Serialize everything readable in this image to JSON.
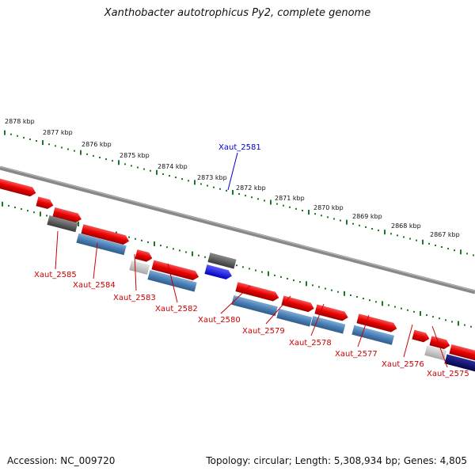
{
  "title": "Xanthobacter autotrophicus Py2, complete genome",
  "footer": {
    "accession": "Accession: NC_009720",
    "stats": "Topology: circular; Length: 5,308,934 bp; Genes: 4,805"
  },
  "colors": {
    "forward_gene": "#e60000",
    "reverse_gene": "#4a7fb5",
    "selected_gene": "#1010e0",
    "dark_gene": "#555555",
    "light_gene": "#c8c8c8",
    "navy_gene": "#0a0a6e",
    "ruler": "#1a7a1a",
    "backbone": "#888888",
    "label_red": "#cc0000",
    "label_blue": "#0000cc"
  },
  "ruler_labels": [
    "2878 kbp",
    "2877 kbp",
    "2876 kbp",
    "2875 kbp",
    "2874 kbp",
    "2873 kbp",
    "2872 kbp",
    "2871 kbp",
    "2870 kbp",
    "2869 kbp",
    "2868 kbp",
    "2867 kbp"
  ],
  "gene_labels": [
    {
      "text": "Xaut_2581",
      "color": "blue"
    },
    {
      "text": "Xaut_2585",
      "color": "red"
    },
    {
      "text": "Xaut_2584",
      "color": "red"
    },
    {
      "text": "Xaut_2583",
      "color": "red"
    },
    {
      "text": "Xaut_2582",
      "color": "red"
    },
    {
      "text": "Xaut_2580",
      "color": "red"
    },
    {
      "text": "Xaut_2579",
      "color": "red"
    },
    {
      "text": "Xaut_2578",
      "color": "red"
    },
    {
      "text": "Xaut_2577",
      "color": "red"
    },
    {
      "text": "Xaut_2576",
      "color": "red"
    },
    {
      "text": "Xaut_2575",
      "color": "red"
    }
  ]
}
